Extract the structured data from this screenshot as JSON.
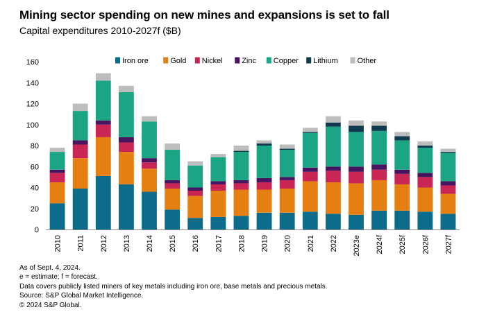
{
  "header": {
    "title": "Mining sector spending on new mines and expansions is set to fall",
    "subtitle": "Capital expenditures 2010-2027f ($B)"
  },
  "notes": [
    "As of Sept. 4, 2024.",
    "e = estimate; f = forecast.",
    "Data covers publicly listed miners of key metals including iron ore, base metals and precious metals.",
    "Source: S&P Global Market Intelligence.",
    "© 2024 S&P Global."
  ],
  "chart_data": {
    "type": "bar",
    "stacked": true,
    "legend_position": "top",
    "grid": false,
    "ylim": [
      0,
      160
    ],
    "yticks": [
      0,
      20,
      40,
      60,
      80,
      100,
      120,
      140,
      160
    ],
    "categories": [
      "2010",
      "2011",
      "2012",
      "2013",
      "2014",
      "2015",
      "2016",
      "2017",
      "2018",
      "2019",
      "2020",
      "2021",
      "2022",
      "2023e",
      "2024f",
      "2025f",
      "2026f",
      "2027f"
    ],
    "series": [
      {
        "name": "Iron ore",
        "color": "#0e6c8b",
        "values": [
          25,
          39,
          51,
          43,
          36,
          19,
          11,
          12,
          13,
          16,
          16,
          17,
          15,
          14,
          18,
          18,
          17,
          15
        ]
      },
      {
        "name": "Gold",
        "color": "#e57f11",
        "values": [
          20,
          29,
          37,
          31,
          22,
          20,
          21,
          25,
          25,
          22,
          23,
          29,
          30,
          30,
          29,
          25,
          23,
          19
        ]
      },
      {
        "name": "Nickel",
        "color": "#c92656",
        "values": [
          9,
          13,
          12,
          9,
          6,
          5,
          5,
          6,
          6,
          7,
          8,
          9,
          11,
          11,
          10,
          10,
          10,
          8
        ]
      },
      {
        "name": "Zinc",
        "color": "#47145f",
        "values": [
          3,
          4,
          4,
          5,
          4,
          3,
          3,
          3,
          3,
          4,
          3,
          4,
          4,
          5,
          5,
          4,
          4,
          4
        ]
      },
      {
        "name": "Copper",
        "color": "#1ba584",
        "values": [
          17,
          28,
          38,
          43,
          35,
          29,
          21,
          23,
          27,
          31,
          26,
          33,
          38,
          33,
          32,
          28,
          24,
          27
        ]
      },
      {
        "name": "Lithium",
        "color": "#103a4e",
        "values": [
          0,
          0,
          0,
          0,
          0,
          0,
          0,
          0,
          1,
          2,
          1,
          1,
          4,
          6,
          5,
          4,
          2,
          1
        ]
      },
      {
        "name": "Other",
        "color": "#bdbdbd",
        "values": [
          4,
          7,
          7,
          6,
          5,
          6,
          4,
          3,
          5,
          3,
          4,
          4,
          6,
          5,
          4,
          4,
          4,
          3
        ]
      }
    ]
  }
}
